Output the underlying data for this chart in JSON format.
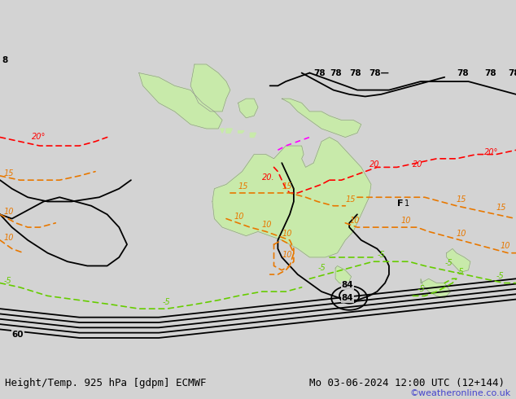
{
  "title_left": "Height/Temp. 925 hPa [gdpm] ECMWF",
  "title_right": "Mo 03-06-2024 12:00 UTC (12+144)",
  "watermark": "©weatheronline.co.uk",
  "bg_color": "#d3d3d3",
  "ocean_color": "#d3d3d3",
  "land_color": "#c8eaaa",
  "coast_color": "#888888",
  "coast_lw": 0.4,
  "bottom_bar_color": "#d8d8d8",
  "bottom_bar_height": 0.065,
  "title_fontsize": 9.0,
  "watermark_color": "#4444cc",
  "watermark_fontsize": 8,
  "xlim": [
    60,
    190
  ],
  "ylim": [
    -65,
    22
  ],
  "figsize": [
    6.34,
    4.9
  ],
  "dpi": 100
}
